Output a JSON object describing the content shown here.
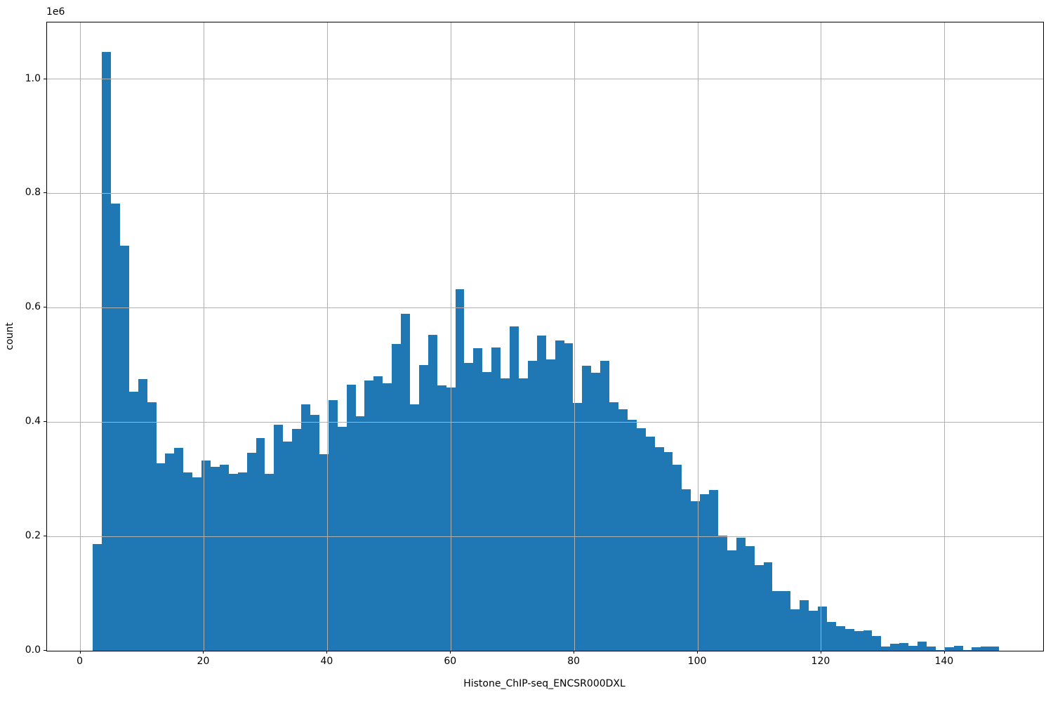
{
  "chart_data": {
    "type": "bar",
    "subtype": "histogram",
    "title": "",
    "xlabel": "Histone_ChIP-seq_ENCSR000DXL",
    "ylabel": "count",
    "offset_text": "1e6",
    "bar_color": "#1f77b4",
    "grid_color": "#b0b0b0",
    "grid": "on",
    "legend": "none",
    "xlim": [
      -5.41,
      155.94
    ],
    "ylim": [
      0,
      1099000
    ],
    "x_ticks": [
      0,
      20,
      40,
      60,
      80,
      100,
      120,
      140
    ],
    "x_tick_labels": [
      "0",
      "20",
      "40",
      "60",
      "80",
      "100",
      "120",
      "140"
    ],
    "y_ticks": [
      0,
      200000,
      400000,
      600000,
      800000,
      1000000
    ],
    "y_tick_labels": [
      "0.0",
      "0.2",
      "0.4",
      "0.6",
      "0.8",
      "1.0"
    ],
    "bin_start": 2.0,
    "bin_width": 1.468,
    "counts": [
      187000,
      1047000,
      782000,
      708000,
      453000,
      475000,
      435000,
      328000,
      345000,
      355000,
      312000,
      303000,
      333000,
      322000,
      326000,
      310000,
      312000,
      346000,
      372000,
      310000,
      395000,
      366000,
      388000,
      431000,
      412000,
      344000,
      439000,
      392000,
      466000,
      410000,
      473000,
      480000,
      468000,
      537000,
      589000,
      431000,
      500000,
      553000,
      464000,
      461000,
      633000,
      503000,
      529000,
      488000,
      530000,
      476000,
      567000,
      476000,
      507000,
      551000,
      510000,
      543000,
      538000,
      433000,
      498000,
      486000,
      507000,
      435000,
      422000,
      404000,
      389000,
      374000,
      356000,
      348000,
      325000,
      283000,
      261000,
      274000,
      281000,
      201000,
      176000,
      198000,
      183000,
      150000,
      155000,
      105000,
      104000,
      72000,
      88000,
      70000,
      77000,
      50000,
      43000,
      38000,
      34000,
      36000,
      26000,
      8000,
      12000,
      13000,
      9000,
      16000,
      8000,
      1000,
      6000,
      9000,
      1000,
      6000,
      7000,
      7000
    ]
  }
}
